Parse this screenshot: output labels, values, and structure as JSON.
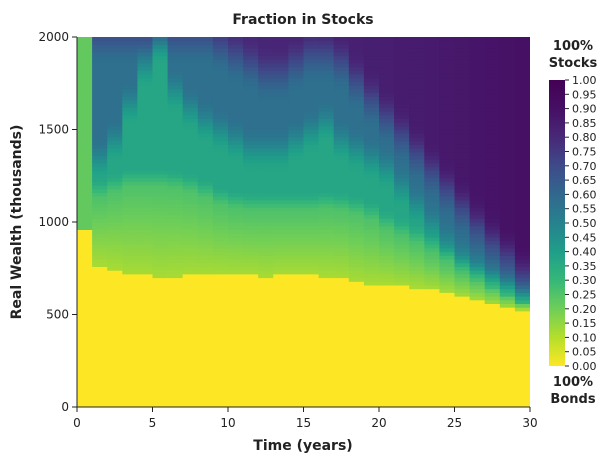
{
  "chart_data": {
    "type": "heatmap",
    "title": "Fraction in Stocks",
    "xlabel": "Time (years)",
    "ylabel": "Real Wealth (thousands)",
    "xlim": [
      0,
      30
    ],
    "ylim": [
      0,
      2000
    ],
    "x_ticks": [
      0,
      5,
      10,
      15,
      20,
      25,
      30
    ],
    "y_ticks": [
      0,
      500,
      1000,
      1500,
      2000
    ],
    "colorbar": {
      "top_label_line1": "100%",
      "top_label_line2": "Stocks",
      "bottom_label_line1": "100%",
      "bottom_label_line2": "Bonds",
      "range": [
        0,
        1
      ],
      "ticks": [
        "0.00",
        "0.05",
        "0.10",
        "0.15",
        "0.20",
        "0.25",
        "0.30",
        "0.35",
        "0.40",
        "0.45",
        "0.50",
        "0.55",
        "0.60",
        "0.65",
        "0.70",
        "0.75",
        "0.80",
        "0.85",
        "0.90",
        "0.95",
        "1.00"
      ],
      "colormap": "viridis_r"
    },
    "grid": false,
    "time_step_years": 1,
    "wealth_step_thousands": 20,
    "boundaries_by_year": {
      "years": [
        0,
        1,
        2,
        3,
        4,
        5,
        6,
        7,
        8,
        9,
        10,
        11,
        12,
        13,
        14,
        15,
        16,
        17,
        18,
        19,
        20,
        21,
        22,
        23,
        24,
        25,
        26,
        27,
        28,
        29
      ],
      "all_bonds_below": [
        960,
        770,
        750,
        720,
        720,
        700,
        710,
        720,
        720,
        720,
        720,
        720,
        710,
        720,
        720,
        720,
        710,
        710,
        680,
        670,
        670,
        660,
        650,
        640,
        620,
        600,
        580,
        560,
        540,
        530
      ],
      "fraction_25_to_35_boundary": [
        960,
        1120,
        1150,
        1180,
        1180,
        1180,
        1170,
        1150,
        1120,
        1080,
        1060,
        1050,
        1050,
        1050,
        1050,
        1050,
        1060,
        1050,
        1030,
        1000,
        950,
        910,
        870,
        820,
        770,
        720,
        680,
        640,
        600,
        560
      ],
      "fraction_35_to_55_boundary": [
        2000,
        1350,
        1450,
        1650,
        1850,
        2000,
        1720,
        1620,
        1550,
        1500,
        1450,
        1400,
        1400,
        1400,
        1450,
        1500,
        1550,
        1450,
        1400,
        1350,
        1300,
        1200,
        1100,
        1000,
        900,
        820,
        760,
        700,
        650,
        600
      ],
      "fraction_55_to_80_boundary": [
        2000,
        2000,
        2000,
        2000,
        2000,
        2000,
        2000,
        2000,
        2000,
        1950,
        1900,
        1850,
        1800,
        1800,
        1850,
        1900,
        1900,
        1850,
        1750,
        1650,
        1550,
        1450,
        1350,
        1250,
        1150,
        1050,
        950,
        860,
        780,
        680
      ]
    }
  }
}
